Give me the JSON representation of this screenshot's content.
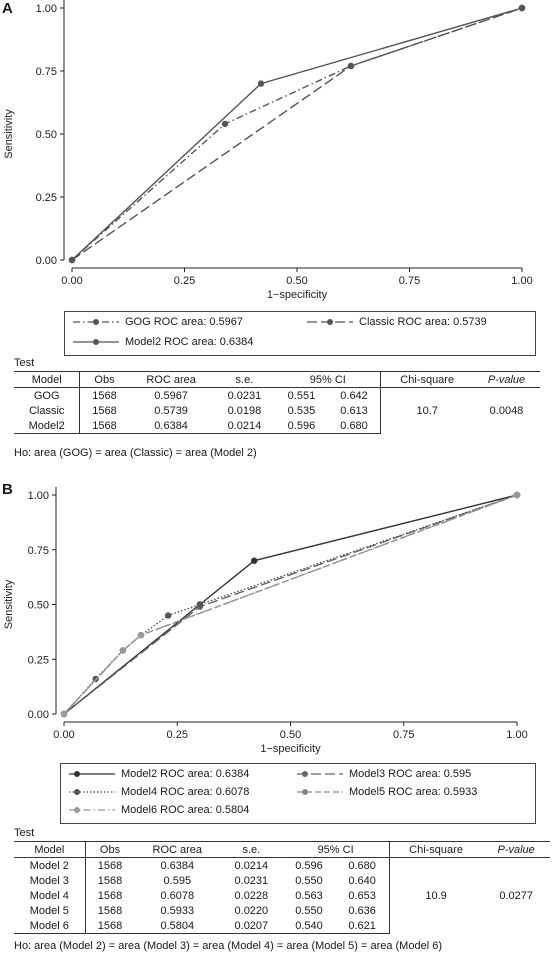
{
  "panels": [
    {
      "label": "A",
      "chart_data": {
        "type": "line",
        "xlabel": "1−specificity",
        "ylabel": "Sensitivity",
        "xlim": [
          0,
          1
        ],
        "ylim": [
          0,
          1
        ],
        "xticks": [
          "0.00",
          "0.25",
          "0.50",
          "0.75",
          "1.00"
        ],
        "yticks": [
          "0.00",
          "0.25",
          "0.50",
          "0.75",
          "1.00"
        ],
        "series": [
          {
            "name": "GOG ROC area: 0.5967",
            "style": "dashdot",
            "color": "#555555",
            "points": [
              [
                0,
                0
              ],
              [
                0.34,
                0.54
              ],
              [
                0.62,
                0.77
              ],
              [
                1,
                1
              ]
            ]
          },
          {
            "name": "Classic ROC area: 0.5739",
            "style": "longdash",
            "color": "#555555",
            "points": [
              [
                0,
                0
              ],
              [
                0.62,
                0.77
              ],
              [
                1,
                1
              ]
            ]
          },
          {
            "name": "Model2 ROC area: 0.6384",
            "style": "solid",
            "color": "#555555",
            "points": [
              [
                0,
                0
              ],
              [
                0.42,
                0.7
              ],
              [
                1,
                1
              ]
            ]
          }
        ]
      },
      "table": {
        "title": "Test",
        "headers": [
          "Model",
          "Obs",
          "ROC area",
          "s.e.",
          "95% CI",
          "Chi-square",
          "P-value"
        ],
        "rows": [
          [
            "GOG",
            "1568",
            "0.5967",
            "0.0231",
            "0.551",
            "0.642"
          ],
          [
            "Classic",
            "1568",
            "0.5739",
            "0.0198",
            "0.535",
            "0.613"
          ],
          [
            "Model2",
            "1568",
            "0.6384",
            "0.0214",
            "0.596",
            "0.680"
          ]
        ],
        "chi_square": "10.7",
        "p_value": "0.0048"
      },
      "hypothesis": "Ho: area (GOG) = area (Classic) = area (Model 2)"
    },
    {
      "label": "B",
      "chart_data": {
        "type": "line",
        "xlabel": "1−specificity",
        "ylabel": "Sensitivity",
        "xlim": [
          0,
          1
        ],
        "ylim": [
          0,
          1
        ],
        "xticks": [
          "0.00",
          "0.25",
          "0.50",
          "0.75",
          "1.00"
        ],
        "yticks": [
          "0.00",
          "0.25",
          "0.50",
          "0.75",
          "1.00"
        ],
        "series": [
          {
            "name": "Model2 ROC area: 0.6384",
            "style": "solid",
            "color": "#333333",
            "points": [
              [
                0,
                0
              ],
              [
                0.3,
                0.5
              ],
              [
                0.42,
                0.7
              ],
              [
                1,
                1
              ]
            ]
          },
          {
            "name": "Model3 ROC area: 0.595",
            "style": "longdash",
            "color": "#666666",
            "points": [
              [
                0,
                0
              ],
              [
                0.3,
                0.49
              ],
              [
                1,
                1
              ]
            ]
          },
          {
            "name": "Model4 ROC area: 0.6078",
            "style": "dotted",
            "color": "#555555",
            "points": [
              [
                0,
                0
              ],
              [
                0.07,
                0.16
              ],
              [
                0.13,
                0.29
              ],
              [
                0.17,
                0.36
              ],
              [
                0.23,
                0.45
              ],
              [
                0.3,
                0.5
              ],
              [
                1,
                1
              ]
            ]
          },
          {
            "name": "Model5 ROC area: 0.5933",
            "style": "shortdash",
            "color": "#888888",
            "points": [
              [
                0,
                0
              ],
              [
                0.13,
                0.29
              ],
              [
                0.17,
                0.36
              ],
              [
                1,
                1
              ]
            ]
          },
          {
            "name": "Model6 ROC area: 0.5804",
            "style": "dashdot",
            "color": "#999999",
            "points": [
              [
                0,
                0
              ],
              [
                0.13,
                0.29
              ],
              [
                0.17,
                0.36
              ],
              [
                1,
                1
              ]
            ]
          }
        ]
      },
      "table": {
        "title": "Test",
        "headers": [
          "Model",
          "Obs",
          "ROC area",
          "s.e.",
          "95% CI",
          "Chi-square",
          "P-value"
        ],
        "rows": [
          [
            "Model 2",
            "1568",
            "0.6384",
            "0.0214",
            "0.596",
            "0.680"
          ],
          [
            "Model 3",
            "1568",
            "0.595",
            "0.0231",
            "0.550",
            "0.640"
          ],
          [
            "Model 4",
            "1568",
            "0.6078",
            "0.0228",
            "0.563",
            "0.653"
          ],
          [
            "Model 5",
            "1568",
            "0.5933",
            "0.0220",
            "0.550",
            "0.636"
          ],
          [
            "Model 6",
            "1568",
            "0.5804",
            "0.0207",
            "0.540",
            "0.621"
          ]
        ],
        "chi_square": "10.9",
        "p_value": "0.0277"
      },
      "hypothesis": "Ho: area (Model 2) = area (Model 3) = area (Model 4) = area (Model 5) = area (Model 6)"
    }
  ]
}
